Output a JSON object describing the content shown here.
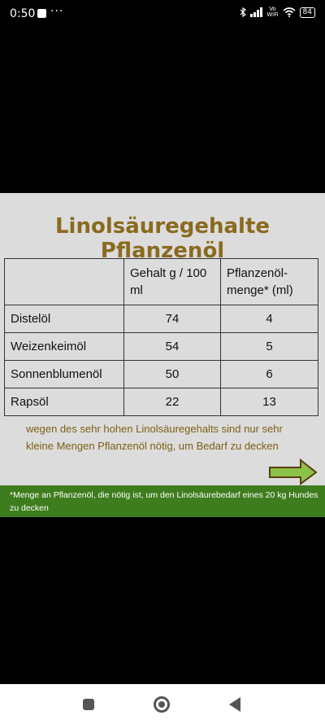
{
  "status": {
    "time": "0:50",
    "more": "···",
    "vowifi_top": "Vo",
    "vowifi_bottom": "WiFi",
    "battery": "84"
  },
  "slide": {
    "title": "Linolsäuregehalte Pflanzenöl",
    "header": {
      "col1": "",
      "col2": "Gehalt g / 100 ml",
      "col3": "Pflanzenöl-menge* (ml)"
    },
    "rows": [
      {
        "name": "Distelöl",
        "gehalt": "74",
        "menge": "4"
      },
      {
        "name": "Weizenkeimöl",
        "gehalt": "54",
        "menge": "5"
      },
      {
        "name": "Sonnenblumenöl",
        "gehalt": "50",
        "menge": "6"
      },
      {
        "name": "Rapsöl",
        "gehalt": "22",
        "menge": "13"
      }
    ],
    "note": "wegen des sehr hohen Linolsäuregehalts sind nur sehr kleine Mengen Pflanzenöl nötig, um Bedarf zu decken",
    "footnote": "*Menge an Pflanzenöl, die nötig ist, um den Linolsäurebedarf eines 20 kg Hundes zu decken"
  },
  "colors": {
    "title": "#8a6a1e",
    "note": "#7d5f14",
    "footer": "#3e7d1d",
    "arrow": "#8bc34a"
  },
  "icons": {
    "nav": [
      "square-icon",
      "home-circle-icon",
      "back-triangle-icon"
    ]
  }
}
